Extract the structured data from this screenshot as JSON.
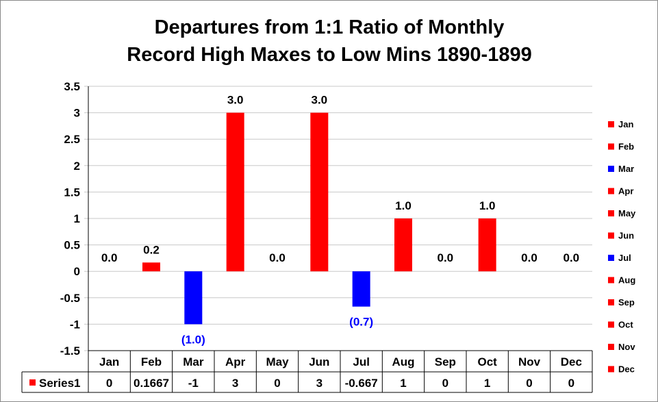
{
  "chart_data": {
    "type": "bar",
    "title_lines": [
      "Departures from 1:1 Ratio of Monthly",
      "Record High Maxes to Low Mins 1890-1899"
    ],
    "categories": [
      "Jan",
      "Feb",
      "Mar",
      "Apr",
      "May",
      "Jun",
      "Jul",
      "Aug",
      "Sep",
      "Oct",
      "Nov",
      "Dec"
    ],
    "series": [
      {
        "name": "Series1",
        "values": [
          0,
          0.1667,
          -1,
          3,
          0,
          3,
          -0.667,
          1,
          0,
          1,
          0,
          0
        ],
        "table_values": [
          "0",
          "0.1667",
          "-1",
          "3",
          "0",
          "3",
          "-0.667",
          "1",
          "0",
          "1",
          "0",
          "0"
        ],
        "data_labels": [
          "0.0",
          "0.2",
          "(1.0)",
          "3.0",
          "0.0",
          "3.0",
          "(0.7)",
          "1.0",
          "0.0",
          "1.0",
          "0.0",
          "0.0"
        ]
      }
    ],
    "y_ticks": [
      "3.5",
      "3",
      "2.5",
      "2",
      "1.5",
      "1",
      "0.5",
      "0",
      "-0.5",
      "-1",
      "-1.5"
    ],
    "ylim": [
      -1.5,
      3.5
    ],
    "y_step": 0.5,
    "grid": true,
    "legend_position": "right",
    "data_table": true,
    "colors": {
      "positive": "#ff0000",
      "negative": "#0000ff",
      "grid": "#c8c8c8",
      "negative_label": "#0000ff",
      "positive_label": "#000000"
    }
  }
}
